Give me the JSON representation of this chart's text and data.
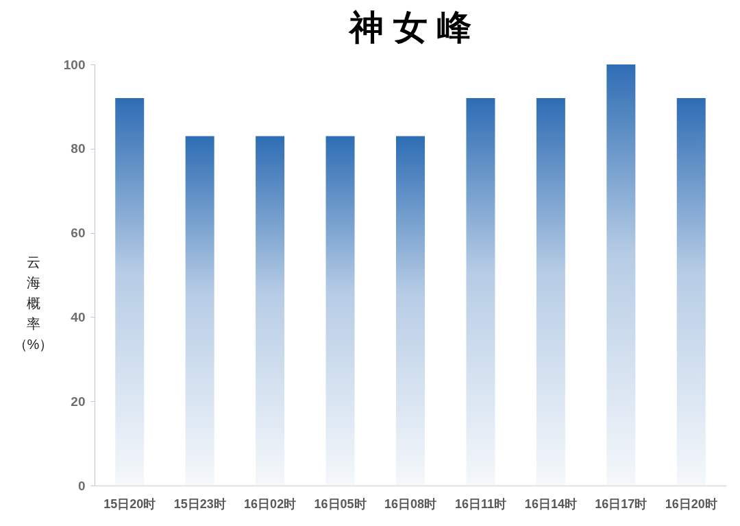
{
  "chart_data": {
    "type": "bar",
    "title": "神 女 峰",
    "ylabel": "云海概率（%）",
    "categories": [
      "15日20时",
      "15日23时",
      "16日02时",
      "16日05时",
      "16日08时",
      "16日11时",
      "16日14时",
      "16日17时",
      "16日20时"
    ],
    "series": [
      {
        "color": "#2e6db4",
        "values": [
          92,
          83,
          83,
          83,
          83,
          92,
          92,
          100,
          92
        ]
      }
    ],
    "ylim": [
      0,
      100
    ],
    "yticks": [
      0,
      20,
      40,
      60,
      80,
      100
    ]
  }
}
